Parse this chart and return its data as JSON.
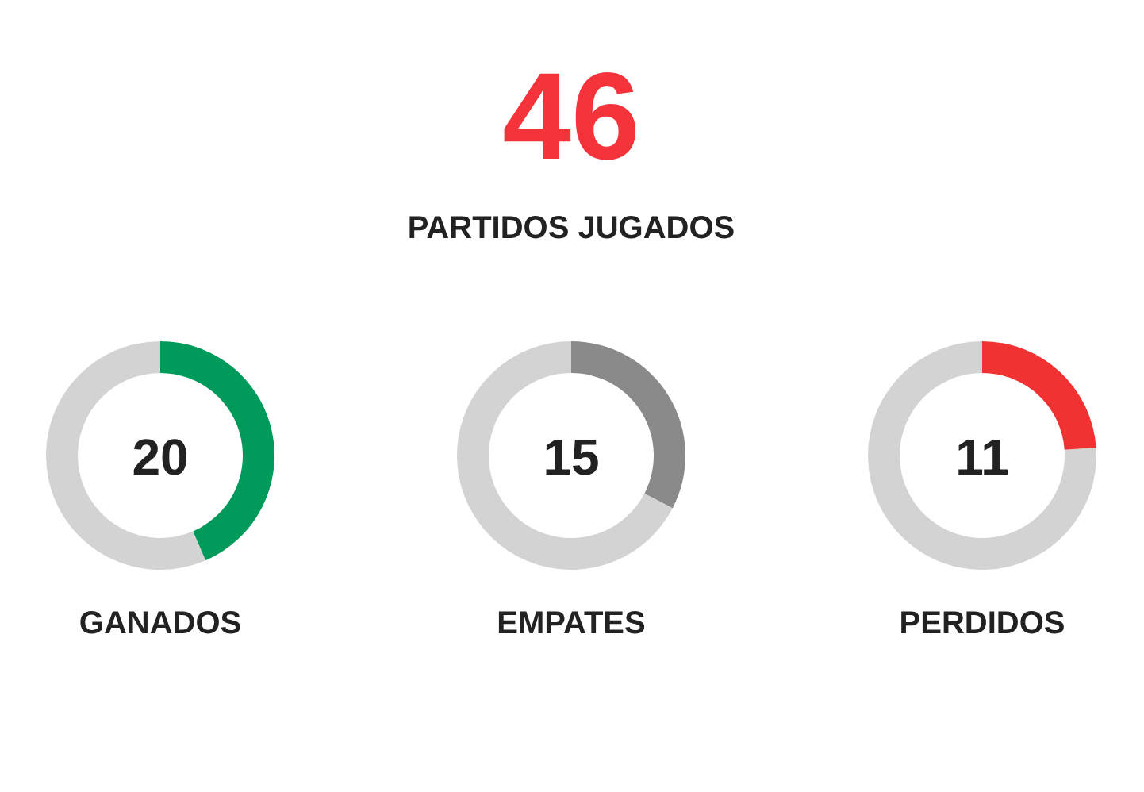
{
  "chart_data": [
    {
      "type": "other",
      "annotations": [
        "46",
        "PARTIDOS JUGADOS"
      ],
      "colors": [
        "#f5333a",
        "#222222"
      ]
    },
    {
      "type": "donut",
      "title": "GANADOS",
      "categories": [
        null,
        null
      ],
      "values": [
        43.5,
        56.5
      ],
      "colors": [
        "#009a5b",
        "#d3d3d3"
      ],
      "annotations": [
        "20"
      ]
    },
    {
      "type": "donut",
      "title": "EMPATES",
      "categories": [
        null,
        null
      ],
      "values": [
        32.6,
        67.4
      ],
      "colors": [
        "#8a8a8a",
        "#d3d3d3"
      ],
      "annotations": [
        "15"
      ]
    },
    {
      "type": "donut",
      "title": "PERDIDOS",
      "categories": [
        null,
        null
      ],
      "values": [
        23.9,
        76.1
      ],
      "colors": [
        "#f03232",
        "#d3d3d3"
      ],
      "annotations": [
        "11"
      ]
    }
  ]
}
